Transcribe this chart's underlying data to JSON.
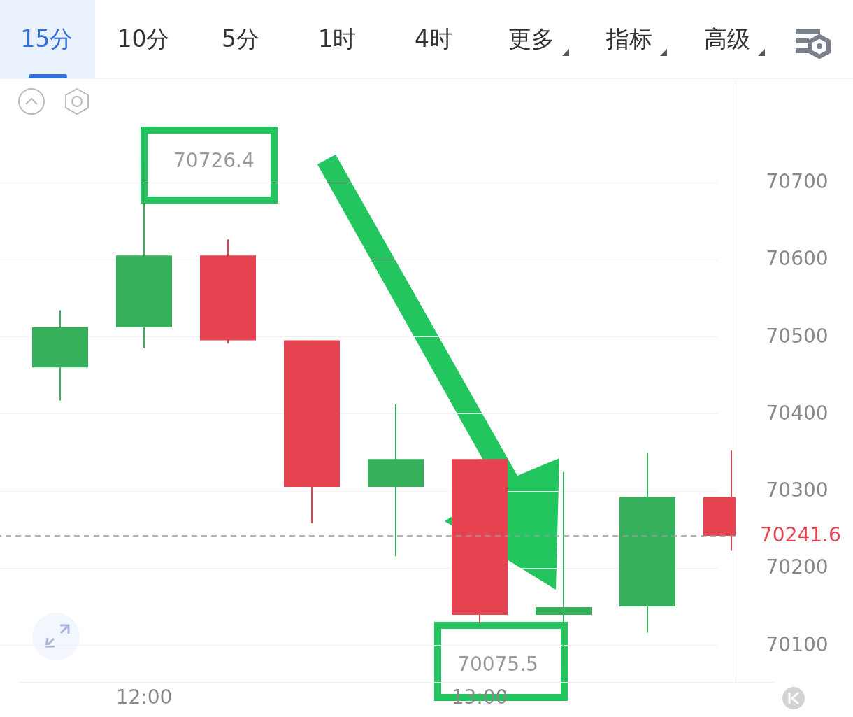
{
  "chart_data": {
    "type": "candlestick",
    "annotations": [
      "15分",
      "10分",
      "5分",
      "1时",
      "4时",
      "更多",
      "指标",
      "高级",
      {
        "text": "70726.4",
        "x": "12:00",
        "y": 70726.4
      },
      "70075.5"
    ],
    "categories": [
      null,
      "12:00",
      null,
      null,
      null,
      "13:00",
      null,
      null,
      null
    ],
    "ohlc": [
      [
        70460,
        70534,
        70417,
        70512
      ],
      [
        70512,
        70726.4,
        70485,
        70605
      ],
      [
        70605,
        70626,
        70491,
        70495
      ],
      [
        70495,
        70495,
        70258,
        70305
      ],
      [
        70305,
        70412,
        70215,
        70341
      ],
      [
        70341,
        70341,
        70128,
        70139
      ],
      [
        70139,
        70324,
        70075.5,
        70149
      ],
      [
        70150,
        70349,
        70116,
        70292
      ],
      [
        70292,
        70352,
        70223,
        70241.6
      ]
    ],
    "colors": [
      "#36b05a",
      "#36b05a",
      "#e5434f",
      "#e5434f",
      "#36b05a",
      "#e5434f",
      "#36b05a",
      "#36b05a",
      "#e5434f"
    ],
    "ylim": [
      70052,
      70832
    ],
    "yticks": [
      70100,
      70200,
      70300,
      70400,
      70500,
      70600,
      70700
    ],
    "ref_lines": [
      {
        "axis": "y",
        "value": 70241.6,
        "label": "70241.6",
        "color": "#999999",
        "line_style": "dashed"
      }
    ],
    "grid": "y"
  }
}
